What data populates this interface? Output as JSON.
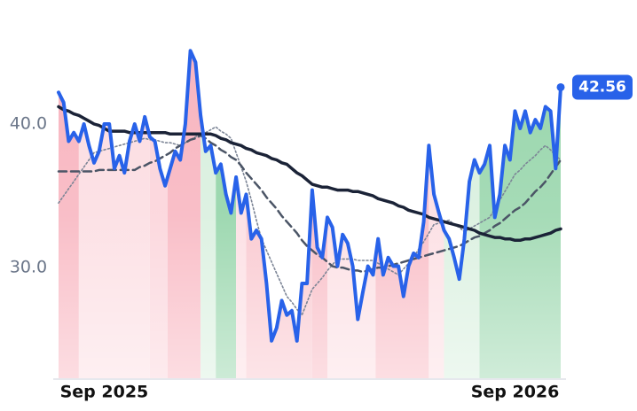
{
  "chart_data": {
    "type": "line",
    "categories": [
      null,
      null,
      null,
      null,
      null,
      null,
      null,
      null,
      null,
      "Sep 2025",
      null,
      null,
      null,
      null,
      null,
      null,
      null,
      null,
      null,
      null,
      null,
      null,
      null,
      null,
      null,
      null,
      null,
      null,
      null,
      null,
      null,
      null,
      null,
      null,
      null,
      null,
      null,
      null,
      null,
      null,
      null,
      null,
      null,
      null,
      null,
      null,
      null,
      null,
      null,
      null,
      null,
      null,
      null,
      null,
      null,
      null,
      null,
      null,
      null,
      null,
      null,
      null,
      null,
      null,
      null,
      null,
      null,
      null,
      null,
      null,
      null,
      null,
      null,
      null,
      null,
      null,
      null,
      null,
      null,
      null,
      null,
      null,
      null,
      null,
      null,
      null,
      null,
      null,
      null,
      null,
      "Sep 2026",
      null,
      null,
      null,
      null,
      null,
      null,
      null,
      null,
      null
    ],
    "ylim": [
      22.3,
      47.4
    ],
    "yticks": [
      {
        "value": 30,
        "label": "30.0"
      },
      {
        "value": 40,
        "label": "40.0"
      }
    ],
    "series": [
      {
        "color": "#2862e9",
        "style": "solid",
        "values": [
          42.2,
          41.5,
          38.8,
          39.4,
          38.8,
          40.0,
          38.5,
          37.3,
          38.1,
          40.0,
          40.0,
          36.9,
          37.8,
          36.6,
          38.8,
          40.0,
          38.8,
          40.5,
          39.1,
          38.8,
          36.9,
          35.7,
          36.9,
          38.1,
          37.5,
          40.0,
          45.1,
          44.3,
          40.6,
          38.1,
          38.5,
          36.6,
          37.2,
          35.1,
          33.8,
          36.3,
          33.8,
          35.1,
          32.0,
          32.6,
          32.0,
          28.9,
          24.9,
          25.8,
          27.7,
          26.7,
          27.0,
          24.9,
          28.9,
          28.9,
          35.4,
          31.4,
          30.7,
          33.5,
          32.8,
          30.1,
          32.3,
          31.7,
          30.1,
          26.4,
          28.3,
          30.1,
          29.5,
          32.0,
          29.5,
          30.7,
          30.1,
          30.1,
          28.0,
          30.1,
          31.0,
          30.7,
          33.2,
          38.5,
          35.1,
          33.8,
          32.6,
          32.0,
          30.7,
          29.2,
          32.0,
          36.0,
          37.5,
          36.6,
          37.2,
          38.5,
          33.5,
          35.1,
          38.5,
          37.5,
          40.9,
          39.7,
          40.9,
          39.4,
          40.3,
          39.7,
          41.2,
          40.9,
          36.9,
          42.56
        ]
      },
      {
        "color": "#1b2337",
        "style": "solid",
        "values": [
          41.2,
          41.0,
          40.9,
          40.7,
          40.6,
          40.4,
          40.2,
          40.0,
          39.9,
          39.7,
          39.5,
          39.5,
          39.5,
          39.5,
          39.4,
          39.4,
          39.4,
          39.4,
          39.4,
          39.4,
          39.4,
          39.4,
          39.3,
          39.3,
          39.3,
          39.3,
          39.3,
          39.3,
          39.3,
          39.3,
          39.3,
          39.2,
          39.0,
          38.9,
          38.7,
          38.6,
          38.5,
          38.3,
          38.2,
          38.0,
          37.9,
          37.8,
          37.6,
          37.5,
          37.3,
          37.2,
          36.9,
          36.6,
          36.4,
          36.1,
          35.8,
          35.7,
          35.6,
          35.6,
          35.5,
          35.4,
          35.4,
          35.4,
          35.3,
          35.3,
          35.2,
          35.1,
          35.0,
          34.8,
          34.7,
          34.6,
          34.5,
          34.3,
          34.2,
          34.0,
          33.9,
          33.8,
          33.7,
          33.5,
          33.4,
          33.3,
          33.2,
          33.1,
          33.0,
          32.9,
          32.8,
          32.7,
          32.6,
          32.4,
          32.3,
          32.2,
          32.1,
          32.1,
          32.0,
          32.0,
          31.9,
          31.9,
          32.0,
          32.0,
          32.1,
          32.2,
          32.3,
          32.4,
          32.6,
          32.7
        ]
      },
      {
        "color": "#4b5566",
        "style": "dashed",
        "values": [
          36.7,
          36.7,
          36.7,
          36.7,
          36.7,
          36.7,
          36.7,
          36.7,
          36.8,
          36.8,
          36.8,
          36.8,
          36.8,
          36.8,
          36.8,
          36.8,
          37.0,
          37.1,
          37.3,
          37.4,
          37.6,
          37.8,
          38.0,
          38.3,
          38.5,
          38.7,
          38.9,
          39.0,
          39.2,
          39.0,
          38.7,
          38.5,
          38.2,
          38.0,
          37.7,
          37.5,
          37.1,
          36.6,
          36.2,
          35.8,
          35.4,
          34.9,
          34.5,
          34.1,
          33.6,
          33.2,
          32.8,
          32.4,
          31.9,
          31.5,
          31.2,
          30.9,
          30.7,
          30.4,
          30.1,
          30.0,
          30.0,
          29.9,
          29.8,
          29.8,
          29.7,
          29.8,
          29.9,
          30.0,
          30.0,
          30.1,
          30.2,
          30.3,
          30.4,
          30.5,
          30.6,
          30.7,
          30.8,
          30.9,
          31.0,
          31.1,
          31.2,
          31.3,
          31.4,
          31.5,
          31.7,
          31.9,
          32.1,
          32.2,
          32.4,
          32.6,
          32.9,
          33.1,
          33.4,
          33.7,
          34.0,
          34.2,
          34.5,
          34.9,
          35.3,
          35.6,
          36.0,
          36.5,
          37.0,
          37.5
        ]
      },
      {
        "color": "#7c8596",
        "style": "dotted",
        "values": [
          34.5,
          35.0,
          35.5,
          36.0,
          36.5,
          37.0,
          37.5,
          38.0,
          38.1,
          38.2,
          38.3,
          38.4,
          38.5,
          38.6,
          38.7,
          38.8,
          38.9,
          39.0,
          38.9,
          38.9,
          38.8,
          38.7,
          38.7,
          38.6,
          38.5,
          38.7,
          38.9,
          39.1,
          39.3,
          39.4,
          39.6,
          39.8,
          39.5,
          39.3,
          39.0,
          38.0,
          37.0,
          36.0,
          34.7,
          33.3,
          32.0,
          31.2,
          30.4,
          29.6,
          28.8,
          28.0,
          27.6,
          27.1,
          26.7,
          27.6,
          28.5,
          28.9,
          29.3,
          29.8,
          30.2,
          30.6,
          30.6,
          30.6,
          30.6,
          30.5,
          30.5,
          30.5,
          30.5,
          30.3,
          30.1,
          29.9,
          29.7,
          29.5,
          29.9,
          30.3,
          30.7,
          31.3,
          31.8,
          32.4,
          33.0,
          33.1,
          33.2,
          33.3,
          33.0,
          32.8,
          32.5,
          32.7,
          32.9,
          33.1,
          33.3,
          33.5,
          34.1,
          34.7,
          35.3,
          35.9,
          36.5,
          36.8,
          37.2,
          37.5,
          37.8,
          38.2,
          38.5,
          38.2,
          37.8,
          37.5
        ]
      }
    ],
    "bands": [
      {
        "from": 0,
        "to": 4,
        "color": "#f8b3be"
      },
      {
        "from": 4,
        "to": 18,
        "color": "#fcdce1"
      },
      {
        "from": 18,
        "to": 21.5,
        "color": "#fbd2d9"
      },
      {
        "from": 21.5,
        "to": 28,
        "color": "#f8b3be"
      },
      {
        "from": 28,
        "to": 31,
        "color": "#d7efdd"
      },
      {
        "from": 31,
        "to": 35,
        "color": "#8ed2a4"
      },
      {
        "from": 35,
        "to": 37,
        "color": "#fcdce1"
      },
      {
        "from": 37,
        "to": 50,
        "color": "#f9c3cb"
      },
      {
        "from": 50,
        "to": 53,
        "color": "#f8b6c0"
      },
      {
        "from": 53,
        "to": 62.5,
        "color": "#fcdce1"
      },
      {
        "from": 62.5,
        "to": 73,
        "color": "#f8b6c0"
      },
      {
        "from": 73,
        "to": 76,
        "color": "#fcdce1"
      },
      {
        "from": 76,
        "to": 83,
        "color": "#d7efdd"
      },
      {
        "from": 83,
        "to": 99,
        "color": "#96d5aa"
      }
    ]
  }
}
